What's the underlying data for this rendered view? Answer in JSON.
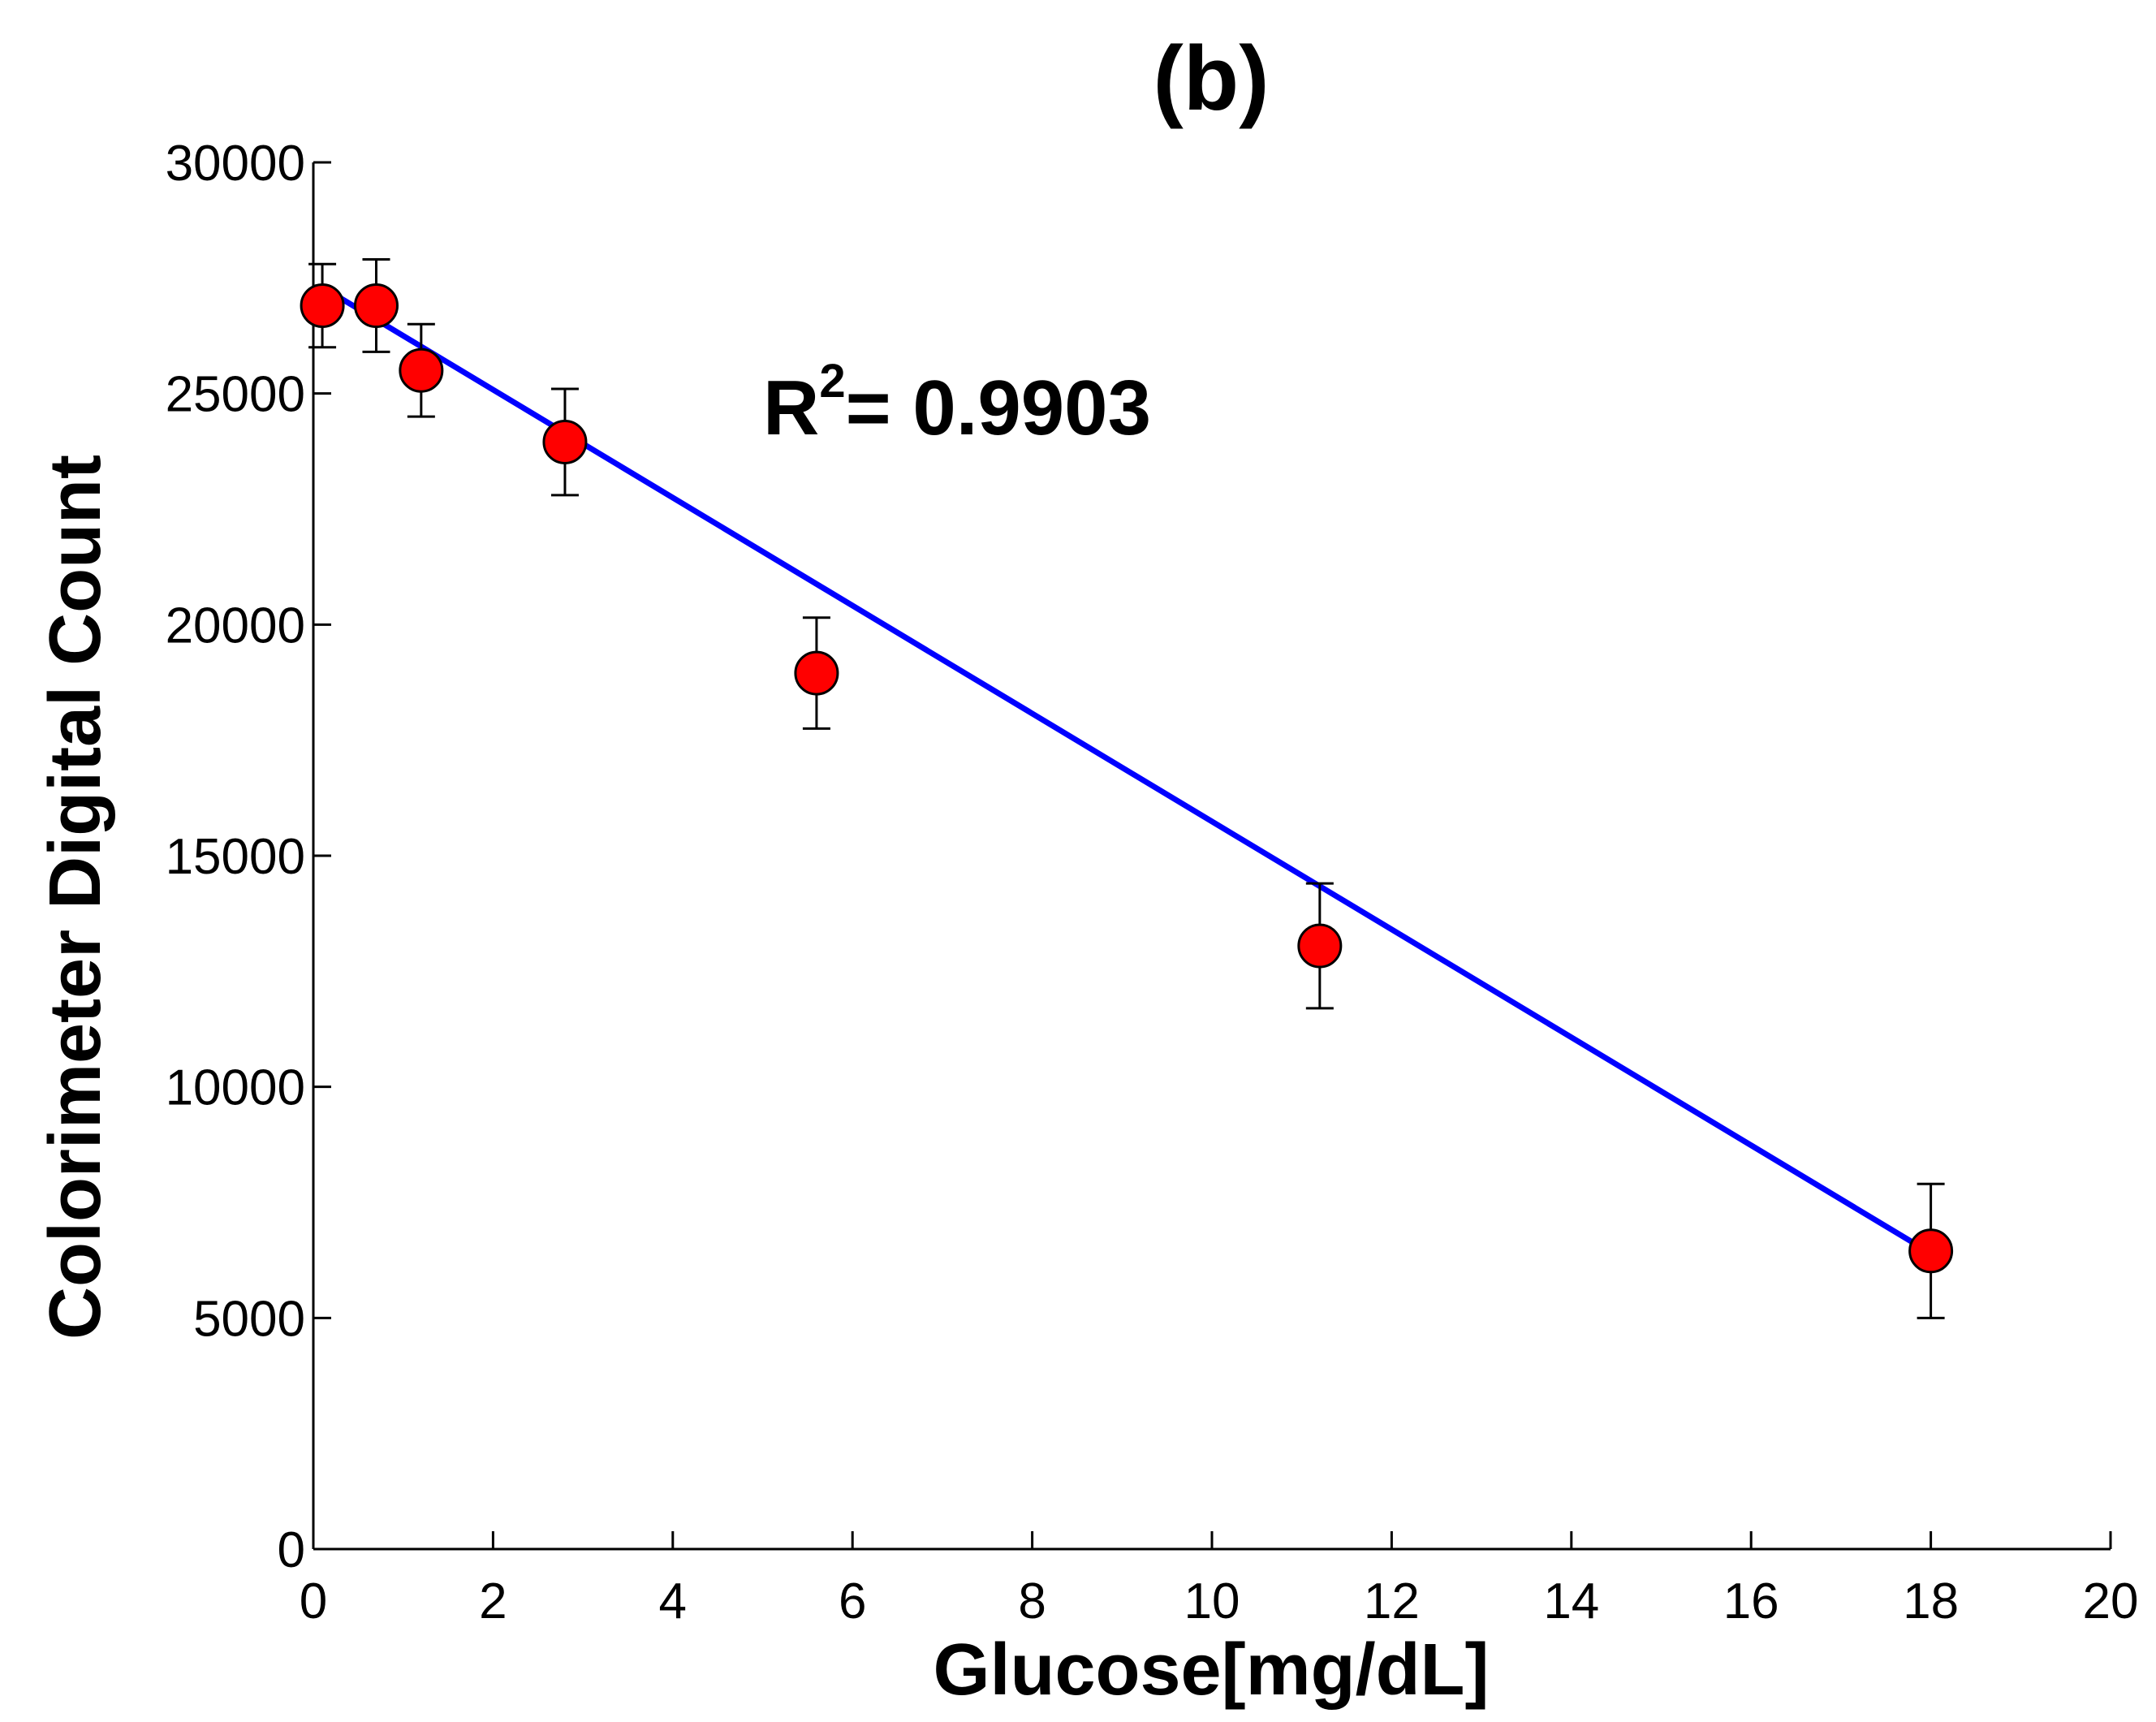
{
  "chart_data": {
    "type": "scatter",
    "title": "(b)",
    "xlabel": "Glucose[mg/dL]",
    "ylabel": "Colorimeter Digital Count",
    "xlim": [
      0,
      20
    ],
    "ylim": [
      0,
      30000
    ],
    "xticks": [
      "0",
      "2",
      "4",
      "6",
      "8",
      "10",
      "12",
      "14",
      "16",
      "18",
      "20"
    ],
    "yticks": [
      "0",
      "5000",
      "10000",
      "15000",
      "20000",
      "25000",
      "30000"
    ],
    "grid": false,
    "annotation": {
      "r_label": "R",
      "superscript": "2",
      "value_text": "= 0.9903"
    },
    "series": [
      {
        "name": "measurements",
        "marker": "circle",
        "color": "#ff0000",
        "x": [
          0.1,
          0.7,
          1.2,
          2.8,
          5.6,
          11.2,
          18.0
        ],
        "y": [
          26900,
          26900,
          25500,
          23950,
          18950,
          13050,
          6450
        ],
        "err": [
          900,
          1000,
          1000,
          1150,
          1200,
          1350,
          1450
        ]
      },
      {
        "name": "fit",
        "type": "line",
        "color": "#0000ff",
        "x": [
          0.1,
          18.0
        ],
        "y": [
          27300,
          6400
        ]
      }
    ]
  }
}
